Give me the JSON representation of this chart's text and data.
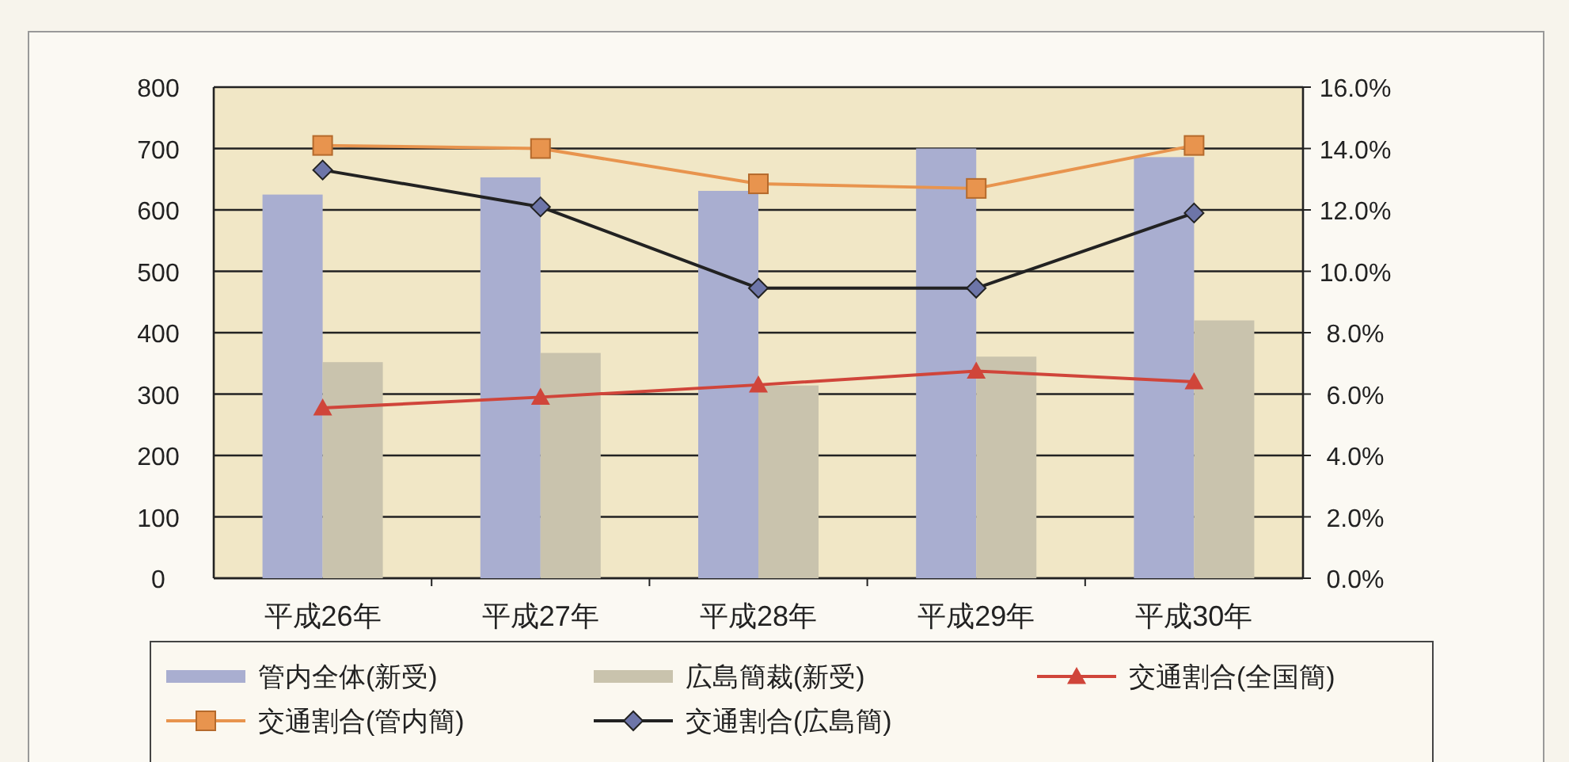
{
  "chart_data": {
    "type": "bar",
    "categories": [
      "平成26年",
      "平成27年",
      "平成28年",
      "平成29年",
      "平成30年"
    ],
    "series": [
      {
        "name": "管内全体(新受)",
        "color": "#a9aed0",
        "values": [
          625,
          653,
          631,
          700,
          686
        ]
      },
      {
        "name": "広島簡裁(新受)",
        "color": "#c9c3ad",
        "values": [
          352,
          367,
          314,
          361,
          420
        ]
      },
      {
        "name": "交通割合(全国簡)",
        "type": "line",
        "axis": "y2",
        "marker": "triangle",
        "color": "#d0453a",
        "values": [
          5.55,
          5.9,
          6.3,
          6.75,
          6.4
        ]
      },
      {
        "name": "交通割合(管内簡)",
        "type": "line",
        "axis": "y2",
        "marker": "square",
        "color": "#e8944e",
        "values": [
          14.1,
          14.0,
          12.85,
          12.7,
          14.1
        ]
      },
      {
        "name": "交通割合(広島簡)",
        "type": "line",
        "axis": "y2",
        "marker": "diamond",
        "color": "#222222",
        "values": [
          13.3,
          12.1,
          9.45,
          9.45,
          11.9
        ]
      }
    ],
    "ylim": [
      0,
      800
    ],
    "yticks": [
      0,
      100,
      200,
      300,
      400,
      500,
      600,
      700,
      800
    ],
    "y2lim": [
      0,
      16
    ],
    "y2ticks": [
      {
        "value": 0,
        "label": "0.0%"
      },
      {
        "value": 2,
        "label": "2.0%"
      },
      {
        "value": 4,
        "label": "4.0%"
      },
      {
        "value": 6,
        "label": "6.0%"
      },
      {
        "value": 8,
        "label": "8.0%"
      },
      {
        "value": 10,
        "label": "10.0%"
      },
      {
        "value": 12,
        "label": "12.0%"
      },
      {
        "value": 14,
        "label": "14.0%"
      },
      {
        "value": 16,
        "label": "16.0%"
      }
    ],
    "grid": "y",
    "legend": "bottom"
  }
}
